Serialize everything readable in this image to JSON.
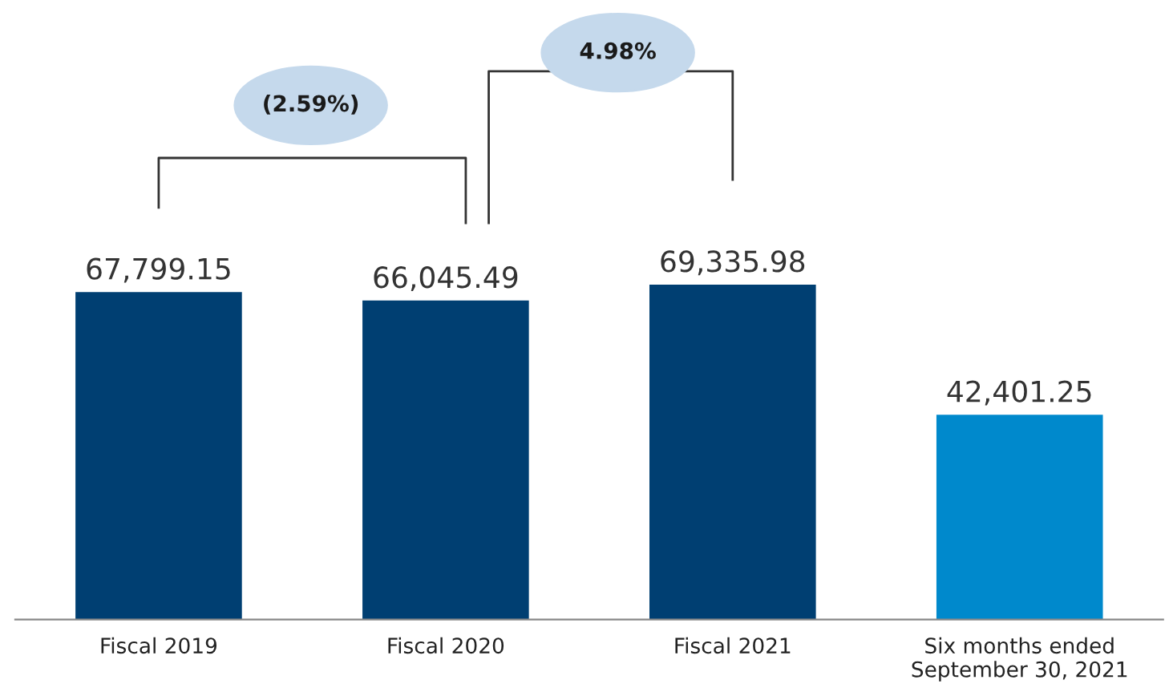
{
  "chart_data": {
    "type": "bar",
    "categories": [
      "Fiscal 2019",
      "Fiscal 2020",
      "Fiscal 2021",
      "Six months ended\nSeptember 30, 2021"
    ],
    "values": [
      67799.15,
      66045.49,
      69335.98,
      42401.25
    ],
    "colors": [
      "#003f72",
      "#003f72",
      "#003f72",
      "#0089cc"
    ],
    "data_labels": true,
    "value_labels": [
      "67,799.15",
      "66,045.49",
      "69,335.98",
      "42,401.25"
    ],
    "annotations": [
      "(2.59%)",
      "4.98%"
    ],
    "grid": false,
    "legend": false
  }
}
